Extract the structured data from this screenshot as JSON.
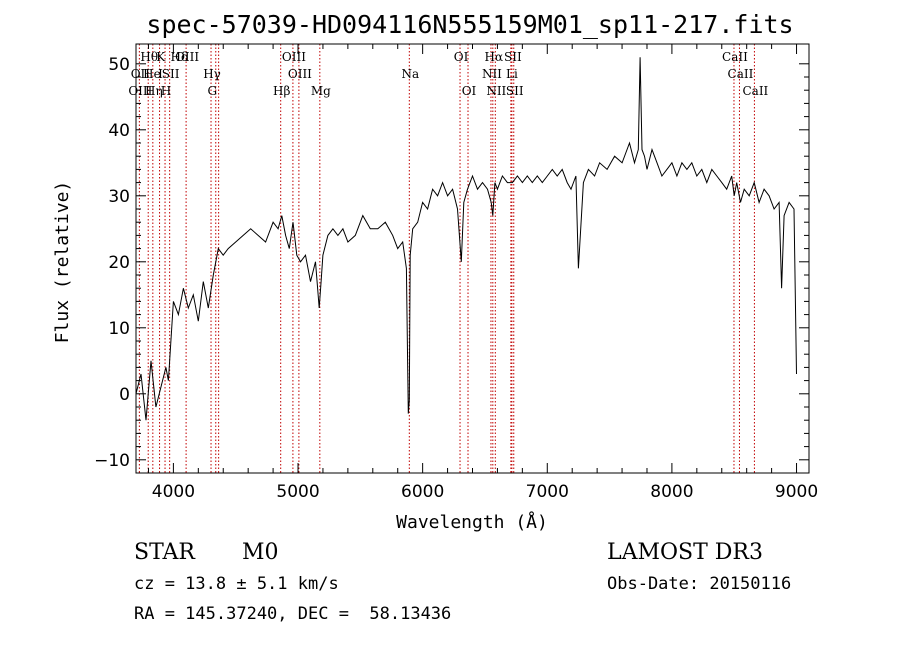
{
  "chart_data": {
    "type": "line",
    "title": "spec-57039-HD094116N555159M01_sp11-217.fits",
    "xlabel": "Wavelength (Å)",
    "ylabel": "Flux (relative)",
    "xlim": [
      3700,
      9100
    ],
    "ylim": [
      -12,
      53
    ],
    "xticks": [
      4000,
      5000,
      6000,
      7000,
      8000,
      9000
    ],
    "yticks": [
      -10,
      0,
      10,
      20,
      30,
      40,
      50
    ],
    "grid": false,
    "series": [
      {
        "x": [
          3700,
          3740,
          3780,
          3820,
          3860,
          3900,
          3940,
          3960,
          3980,
          4000,
          4040,
          4080,
          4120,
          4160,
          4200,
          4240,
          4280,
          4320,
          4360,
          4400,
          4440,
          4500,
          4560,
          4620,
          4680,
          4740,
          4800,
          4840,
          4870,
          4900,
          4930,
          4960,
          4990,
          5020,
          5060,
          5100,
          5140,
          5170,
          5185,
          5200,
          5240,
          5280,
          5320,
          5360,
          5400,
          5460,
          5520,
          5580,
          5640,
          5700,
          5760,
          5800,
          5840,
          5870,
          5885,
          5893,
          5900,
          5920,
          5960,
          6000,
          6040,
          6080,
          6120,
          6160,
          6200,
          6240,
          6280,
          6310,
          6330,
          6360,
          6400,
          6440,
          6480,
          6520,
          6550,
          6563,
          6580,
          6600,
          6640,
          6680,
          6720,
          6760,
          6800,
          6840,
          6880,
          6920,
          6960,
          7000,
          7040,
          7080,
          7120,
          7160,
          7190,
          7230,
          7250,
          7290,
          7330,
          7380,
          7420,
          7480,
          7540,
          7600,
          7660,
          7700,
          7730,
          7745,
          7760,
          7780,
          7800,
          7840,
          7880,
          7920,
          7960,
          8000,
          8040,
          8080,
          8120,
          8160,
          8200,
          8240,
          8280,
          8320,
          8360,
          8400,
          8440,
          8480,
          8500,
          8520,
          8550,
          8580,
          8620,
          8660,
          8700,
          8740,
          8780,
          8820,
          8860,
          8880,
          8900,
          8940,
          8980,
          9000
        ],
        "y": [
          0,
          3,
          -4,
          5,
          -2,
          1,
          4,
          2,
          8,
          14,
          12,
          16,
          13,
          15,
          11,
          17,
          13,
          18,
          22,
          21,
          22,
          23,
          24,
          25,
          24,
          23,
          26,
          25,
          27,
          24,
          22,
          26,
          21,
          20,
          21,
          17,
          20,
          13,
          17,
          21,
          24,
          25,
          24,
          25,
          23,
          24,
          27,
          25,
          25,
          26,
          24,
          22,
          23,
          19,
          -3,
          -1,
          21,
          25,
          26,
          29,
          28,
          31,
          30,
          32,
          30,
          31,
          28,
          20,
          29,
          31,
          33,
          31,
          32,
          31,
          29,
          27,
          32,
          31,
          33,
          32,
          32,
          33,
          32,
          33,
          32,
          33,
          32,
          33,
          34,
          33,
          34,
          32,
          31,
          33,
          19,
          32,
          34,
          33,
          35,
          34,
          36,
          35,
          38,
          35,
          37,
          51,
          37,
          36,
          34,
          37,
          35,
          33,
          34,
          35,
          33,
          35,
          34,
          35,
          33,
          34,
          32,
          34,
          33,
          32,
          31,
          33,
          30,
          32,
          29,
          31,
          30,
          32,
          29,
          31,
          30,
          28,
          29,
          16,
          27,
          29,
          28,
          3
        ]
      }
    ],
    "lines": [
      {
        "label": "OII",
        "x": 3727,
        "row": 2
      },
      {
        "label": "OIII",
        "x": 3727,
        "row": 3
      },
      {
        "label": "Hθ",
        "x": 3798,
        "row": 1
      },
      {
        "label": "He",
        "x": 3820,
        "row": 2
      },
      {
        "label": "Hη",
        "x": 3835,
        "row": 3
      },
      {
        "label": "K",
        "x": 3890,
        "row": 1
      },
      {
        "label": "I",
        "x": 3889,
        "row": 2
      },
      {
        "label": "H",
        "x": 3933,
        "row": 3
      },
      {
        "label": "SII",
        "x": 3970,
        "row": 2
      },
      {
        "label": "Hδ",
        "x": 4040,
        "row": 1
      },
      {
        "label": "OIII",
        "x": 4102,
        "row": 1
      },
      {
        "label": "Hγ",
        "x": 4302,
        "row": 2
      },
      {
        "label": "G",
        "x": 4304,
        "row": 3
      },
      {
        "label": "Hβ",
        "x": 4861,
        "row": 3
      },
      {
        "label": "OIII",
        "x": 4959,
        "row": 1
      },
      {
        "label": "OIII",
        "x": 5007,
        "row": 2
      },
      {
        "label": "Mg",
        "x": 5175,
        "row": 3
      },
      {
        "label": "Na",
        "x": 5893,
        "row": 2
      },
      {
        "label": "OI",
        "x": 6300,
        "row": 1
      },
      {
        "label": "OI",
        "x": 6364,
        "row": 3
      },
      {
        "label": "Hα",
        "x": 6563,
        "row": 1
      },
      {
        "label": "NII",
        "x": 6548,
        "row": 2
      },
      {
        "label": "NII",
        "x": 6583,
        "row": 3
      },
      {
        "label": "SII",
        "x": 6716,
        "row": 1
      },
      {
        "label": "Li",
        "x": 6708,
        "row": 2
      },
      {
        "label": "SII",
        "x": 6731,
        "row": 3
      },
      {
        "label": "CaII",
        "x": 8498,
        "row": 1
      },
      {
        "label": "CaII",
        "x": 8542,
        "row": 2
      },
      {
        "label": "CaII",
        "x": 8662,
        "row": 3
      }
    ],
    "line_positions": [
      3727,
      3798,
      3835,
      3889,
      3933,
      3970,
      4102,
      4302,
      4340,
      4363,
      4861,
      4959,
      5007,
      5175,
      5893,
      6300,
      6364,
      6548,
      6563,
      6583,
      6708,
      6716,
      6731,
      8498,
      8542,
      8662
    ]
  },
  "info": {
    "class_label": "STAR",
    "subclass": "M0",
    "cz_line": "cz = 13.8 ± 5.1 km/s",
    "coords_line": "RA = 145.37240, DEC =  58.13436",
    "survey": "LAMOST DR3",
    "obs_date": "Obs-Date: 20150116"
  },
  "colors": {
    "axis": "#000000",
    "spectrum": "#000000",
    "line_markers": "#c00000"
  }
}
